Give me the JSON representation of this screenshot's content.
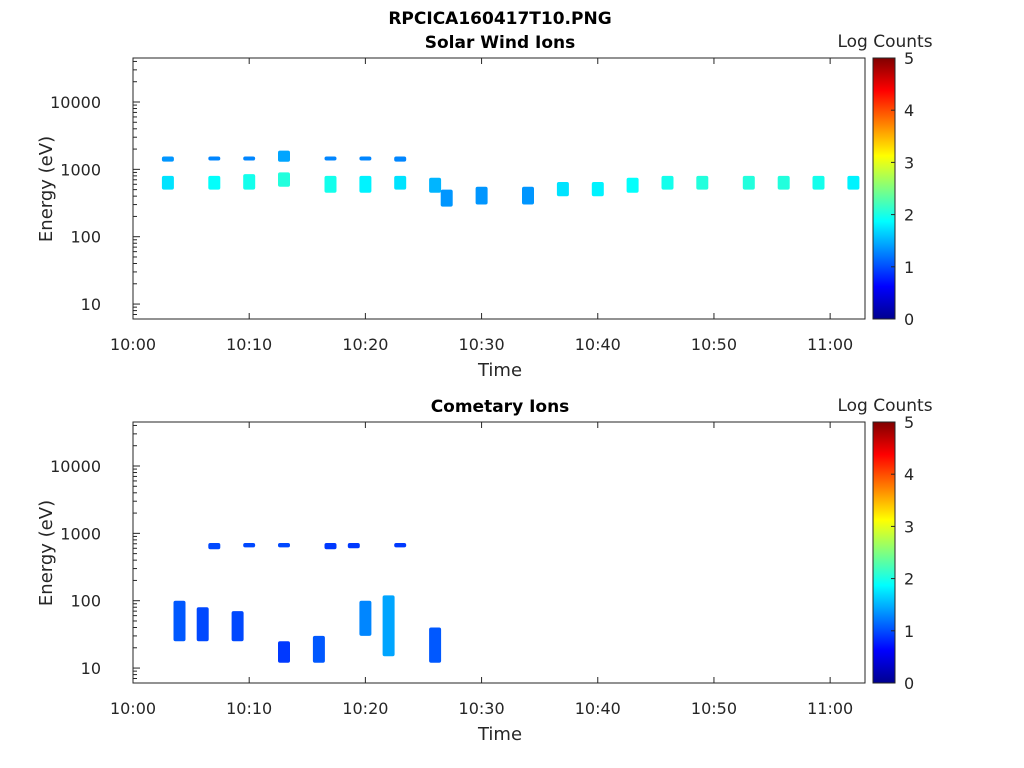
{
  "figure_title": "RPCICA160417T10.PNG",
  "chart_data": [
    {
      "type": "heatmap",
      "title": "Solar Wind Ions",
      "xlabel": "Time",
      "ylabel": "Energy (eV)",
      "y_scale": "log",
      "xlim": [
        "10:00",
        "11:03"
      ],
      "ylim": [
        6,
        45000
      ],
      "x_tick_labels": [
        "10:00",
        "10:10",
        "10:20",
        "10:30",
        "10:40",
        "10:50",
        "11:00"
      ],
      "y_tick_labels": [
        "10",
        "100",
        "1000",
        "10000"
      ],
      "colorbar": {
        "label": "Log Counts",
        "range": [
          0,
          5
        ],
        "tick_labels": [
          "0",
          "1",
          "2",
          "3",
          "4",
          "5"
        ],
        "colormap": "jet"
      },
      "grid": false,
      "blobs": [
        {
          "t": "10:03",
          "e": [
            500,
            800
          ],
          "c": 1.5
        },
        {
          "t": "10:03",
          "e": [
            1300,
            1550
          ],
          "c": 1.0
        },
        {
          "t": "10:07",
          "e": [
            500,
            800
          ],
          "c": 1.7
        },
        {
          "t": "10:07",
          "e": [
            1350,
            1550
          ],
          "c": 0.9
        },
        {
          "t": "10:10",
          "e": [
            500,
            850
          ],
          "c": 1.8
        },
        {
          "t": "10:10",
          "e": [
            1350,
            1550
          ],
          "c": 0.9
        },
        {
          "t": "10:13",
          "e": [
            550,
            900
          ],
          "c": 1.9
        },
        {
          "t": "10:13",
          "e": [
            1300,
            1900
          ],
          "c": 1.1
        },
        {
          "t": "10:17",
          "e": [
            450,
            800
          ],
          "c": 1.8
        },
        {
          "t": "10:17",
          "e": [
            1350,
            1550
          ],
          "c": 0.9
        },
        {
          "t": "10:20",
          "e": [
            450,
            800
          ],
          "c": 1.6
        },
        {
          "t": "10:20",
          "e": [
            1350,
            1550
          ],
          "c": 0.9
        },
        {
          "t": "10:23",
          "e": [
            500,
            800
          ],
          "c": 1.5
        },
        {
          "t": "10:23",
          "e": [
            1300,
            1550
          ],
          "c": 0.9
        },
        {
          "t": "10:26",
          "e": [
            450,
            750
          ],
          "c": 1.2
        },
        {
          "t": "10:27",
          "e": [
            280,
            500
          ],
          "c": 1.0
        },
        {
          "t": "10:30",
          "e": [
            300,
            550
          ],
          "c": 1.0
        },
        {
          "t": "10:34",
          "e": [
            300,
            550
          ],
          "c": 1.0
        },
        {
          "t": "10:37",
          "e": [
            400,
            650
          ],
          "c": 1.5
        },
        {
          "t": "10:40",
          "e": [
            400,
            650
          ],
          "c": 1.6
        },
        {
          "t": "10:43",
          "e": [
            450,
            750
          ],
          "c": 1.7
        },
        {
          "t": "10:46",
          "e": [
            500,
            800
          ],
          "c": 1.8
        },
        {
          "t": "10:49",
          "e": [
            500,
            800
          ],
          "c": 1.9
        },
        {
          "t": "10:53",
          "e": [
            500,
            800
          ],
          "c": 1.9
        },
        {
          "t": "10:56",
          "e": [
            500,
            800
          ],
          "c": 1.9
        },
        {
          "t": "10:59",
          "e": [
            500,
            800
          ],
          "c": 1.8
        },
        {
          "t": "11:02",
          "e": [
            500,
            800
          ],
          "c": 1.6
        }
      ]
    },
    {
      "type": "heatmap",
      "title": "Cometary Ions",
      "xlabel": "Time",
      "ylabel": "Energy (eV)",
      "y_scale": "log",
      "xlim": [
        "10:00",
        "11:03"
      ],
      "ylim": [
        6,
        45000
      ],
      "x_tick_labels": [
        "10:00",
        "10:10",
        "10:20",
        "10:30",
        "10:40",
        "10:50",
        "11:00"
      ],
      "y_tick_labels": [
        "10",
        "100",
        "1000",
        "10000"
      ],
      "colorbar": {
        "label": "Log Counts",
        "range": [
          0,
          5
        ],
        "tick_labels": [
          "0",
          "1",
          "2",
          "3",
          "4",
          "5"
        ],
        "colormap": "jet"
      },
      "grid": false,
      "blobs": [
        {
          "t": "10:04",
          "e": [
            25,
            100
          ],
          "c": 0.6
        },
        {
          "t": "10:06",
          "e": [
            25,
            80
          ],
          "c": 0.5
        },
        {
          "t": "10:07",
          "e": [
            580,
            720
          ],
          "c": 0.5
        },
        {
          "t": "10:09",
          "e": [
            25,
            70
          ],
          "c": 0.5
        },
        {
          "t": "10:10",
          "e": [
            620,
            720
          ],
          "c": 0.5
        },
        {
          "t": "10:13",
          "e": [
            12,
            25
          ],
          "c": 0.4
        },
        {
          "t": "10:13",
          "e": [
            620,
            720
          ],
          "c": 0.5
        },
        {
          "t": "10:16",
          "e": [
            12,
            30
          ],
          "c": 0.6
        },
        {
          "t": "10:17",
          "e": [
            580,
            720
          ],
          "c": 0.4
        },
        {
          "t": "10:19",
          "e": [
            600,
            720
          ],
          "c": 0.4
        },
        {
          "t": "10:20",
          "e": [
            30,
            100
          ],
          "c": 0.9
        },
        {
          "t": "10:22",
          "e": [
            15,
            120
          ],
          "c": 1.1
        },
        {
          "t": "10:23",
          "e": [
            620,
            720
          ],
          "c": 0.4
        },
        {
          "t": "10:26",
          "e": [
            12,
            40
          ],
          "c": 0.6
        }
      ]
    }
  ]
}
